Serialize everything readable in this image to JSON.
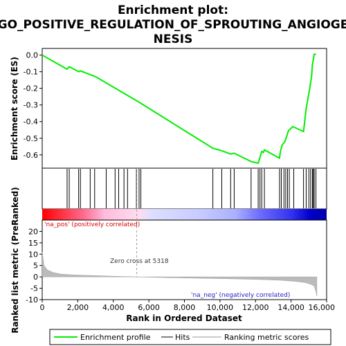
{
  "chart_data": {
    "type": "line",
    "title_lines": [
      "Enrichment plot:",
      "GO_POSITIVE_REGULATION_OF_SPROUTING_ANGIOGE",
      "NESIS"
    ],
    "xlabel": "Rank in Ordered Dataset",
    "ylabel_es": "Enrichment score (ES)",
    "ylabel_metric": "Ranked list metric (PreRanked)",
    "xlim": [
      0,
      16000
    ],
    "es_ylim": [
      -0.68,
      0.04
    ],
    "metric_ylim": [
      -10,
      25
    ],
    "x_ticks": [
      0,
      2000,
      4000,
      6000,
      8000,
      10000,
      12000,
      14000,
      16000
    ],
    "x_tick_labels": [
      "0",
      "2,000",
      "4,000",
      "6,000",
      "8,000",
      "10,000",
      "12,000",
      "14,000",
      "16,000"
    ],
    "es_ticks": [
      0.0,
      -0.1,
      -0.2,
      -0.3,
      -0.4,
      -0.5,
      -0.6
    ],
    "es_tick_labels": [
      "0.0",
      "-0.1",
      "-0.2",
      "-0.3",
      "-0.4",
      "-0.5",
      "-0.6"
    ],
    "metric_ticks": [
      20,
      15,
      10,
      5,
      0,
      -5,
      -10
    ],
    "metric_tick_labels": [
      "20",
      "15",
      "10",
      "5",
      "0",
      "-5",
      "-10"
    ],
    "series": [
      {
        "name": "Enrichment profile",
        "color": "#00ee00",
        "x": [
          0,
          1400,
          1520,
          2050,
          2150,
          3000,
          5400,
          9600,
          10100,
          10600,
          10800,
          11750,
          12150,
          12250,
          12350,
          12450,
          12500,
          13350,
          13400,
          13500,
          13650,
          13750,
          13850,
          14100,
          14700,
          14850,
          15050,
          15150,
          15200,
          15300,
          15400
        ],
        "y": [
          0.0,
          -0.085,
          -0.07,
          -0.1,
          -0.095,
          -0.13,
          -0.28,
          -0.56,
          -0.575,
          -0.595,
          -0.59,
          -0.64,
          -0.65,
          -0.615,
          -0.58,
          -0.585,
          -0.57,
          -0.62,
          -0.58,
          -0.54,
          -0.52,
          -0.49,
          -0.455,
          -0.43,
          -0.46,
          -0.32,
          -0.2,
          -0.13,
          -0.06,
          0.005,
          0.005
        ]
      }
    ],
    "hits": [
      1400,
      1520,
      2050,
      2150,
      2700,
      2950,
      3600,
      4100,
      4300,
      4600,
      4800,
      5300,
      5450,
      5550,
      9600,
      10100,
      10600,
      10800,
      11750,
      12150,
      12250,
      12350,
      12500,
      13350,
      13450,
      13600,
      13700,
      13800,
      13900,
      14150,
      14700,
      14850,
      15000,
      15100,
      15200,
      15250,
      15300,
      15400
    ],
    "metric_curve": {
      "x": [
        0,
        100,
        300,
        600,
        1000,
        1500,
        2000,
        3000,
        4000,
        5318,
        7000,
        9000,
        11000,
        12500,
        13500,
        14300,
        14800,
        15100,
        15300,
        15400,
        15450
      ],
      "y": [
        11,
        5,
        3,
        2,
        1.3,
        1.0,
        0.8,
        0.55,
        0.3,
        0.0,
        -0.3,
        -0.6,
        -0.9,
        -1.2,
        -1.5,
        -2.0,
        -2.5,
        -3.2,
        -4.0,
        -6.5,
        -8.5
      ]
    },
    "zero_cross_x": 5318,
    "annotations": {
      "pos": "'na_pos' (positively correlated)",
      "neg": "'na_neg' (negatively correlated)",
      "zero": "Zero cross at 5318"
    },
    "colors": {
      "pos_text": "#dd0000",
      "neg_text": "#2222cc",
      "metric_fill": "#bbbbbb",
      "bar_red": "#ff0000",
      "bar_blue": "#0000ff"
    },
    "legend": [
      {
        "label": "Enrichment profile",
        "color": "#00ee00"
      },
      {
        "label": "Hits",
        "color": "#000000"
      },
      {
        "label": "Ranking metric scores",
        "color": "#bbbbbb"
      }
    ]
  }
}
